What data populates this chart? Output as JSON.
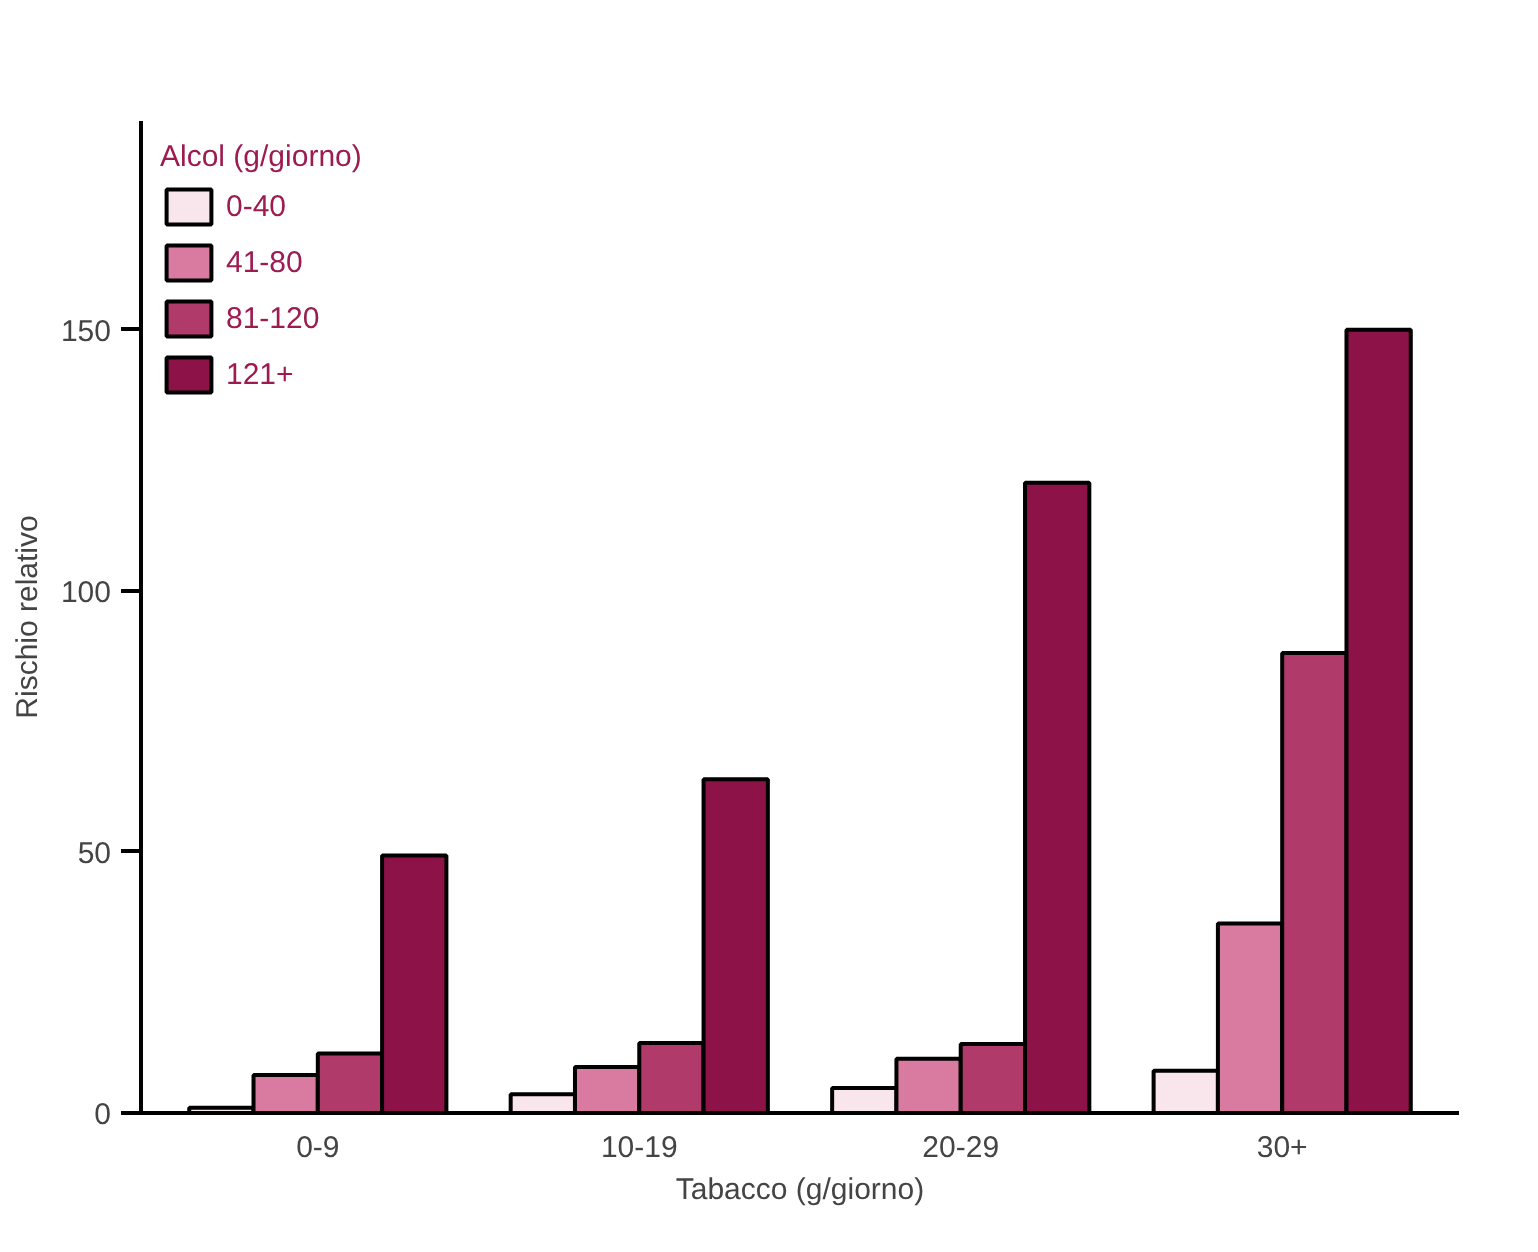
{
  "chart_data": {
    "type": "bar",
    "xlabel": "Tabacco (g/giorno)",
    "ylabel": "Rischio relativo",
    "legend_title": "Alcol (g/giorno)",
    "categories": [
      "0-9",
      "10-19",
      "20-29",
      "30+"
    ],
    "series": [
      {
        "name": "0-40",
        "color": "#f8e6ec",
        "values": [
          1,
          3.6,
          4.8,
          8.1
        ]
      },
      {
        "name": "41-80",
        "color": "#d97aa0",
        "values": [
          7.3,
          8.8,
          10.4,
          36.3
        ]
      },
      {
        "name": "81-120",
        "color": "#b03a6a",
        "values": [
          11.4,
          13.4,
          13.2,
          88.1
        ]
      },
      {
        "name": "121+",
        "color": "#8c1248",
        "values": [
          49.3,
          63.9,
          120.7,
          150
        ]
      }
    ],
    "ylim": [
      0,
      190
    ],
    "yticks": [
      0,
      50,
      100,
      150
    ],
    "grid": false,
    "legend": "top left"
  }
}
